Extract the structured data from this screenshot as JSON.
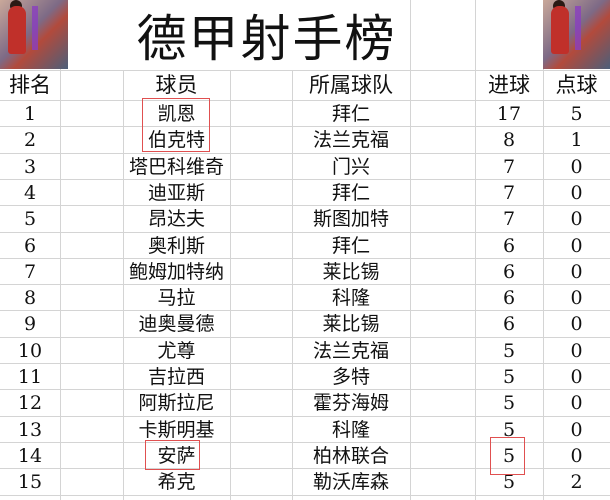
{
  "title": "德甲射手榜",
  "headers": {
    "rank": "排名",
    "player": "球员",
    "team": "所属球队",
    "goals": "进球",
    "penalties": "点球"
  },
  "rows": [
    {
      "rank": "1",
      "player": "凯恩",
      "team": "拜仁",
      "goals": "17",
      "penalties": "5"
    },
    {
      "rank": "2",
      "player": "伯克特",
      "team": "法兰克福",
      "goals": "8",
      "penalties": "1"
    },
    {
      "rank": "3",
      "player": "塔巴科维奇",
      "team": "门兴",
      "goals": "7",
      "penalties": "0"
    },
    {
      "rank": "4",
      "player": "迪亚斯",
      "team": "拜仁",
      "goals": "7",
      "penalties": "0"
    },
    {
      "rank": "5",
      "player": "昂达夫",
      "team": "斯图加特",
      "goals": "7",
      "penalties": "0"
    },
    {
      "rank": "6",
      "player": "奥利斯",
      "team": "拜仁",
      "goals": "6",
      "penalties": "0"
    },
    {
      "rank": "7",
      "player": "鲍姆加特纳",
      "team": "莱比锡",
      "goals": "6",
      "penalties": "0"
    },
    {
      "rank": "8",
      "player": "马拉",
      "team": "科隆",
      "goals": "6",
      "penalties": "0"
    },
    {
      "rank": "9",
      "player": "迪奥曼德",
      "team": "莱比锡",
      "goals": "6",
      "penalties": "0"
    },
    {
      "rank": "10",
      "player": "尤尊",
      "team": "法兰克福",
      "goals": "5",
      "penalties": "0"
    },
    {
      "rank": "11",
      "player": "吉拉西",
      "team": "多特",
      "goals": "5",
      "penalties": "0"
    },
    {
      "rank": "12",
      "player": "阿斯拉尼",
      "team": "霍芬海姆",
      "goals": "5",
      "penalties": "0"
    },
    {
      "rank": "13",
      "player": "卡斯明基",
      "team": "科隆",
      "goals": "5",
      "penalties": "0"
    },
    {
      "rank": "14",
      "player": "安萨",
      "team": "柏林联合",
      "goals": "5",
      "penalties": "0"
    },
    {
      "rank": "15",
      "player": "希克",
      "team": "勒沃库森",
      "goals": "5",
      "penalties": "2"
    }
  ],
  "highlight_color": "#e05050"
}
